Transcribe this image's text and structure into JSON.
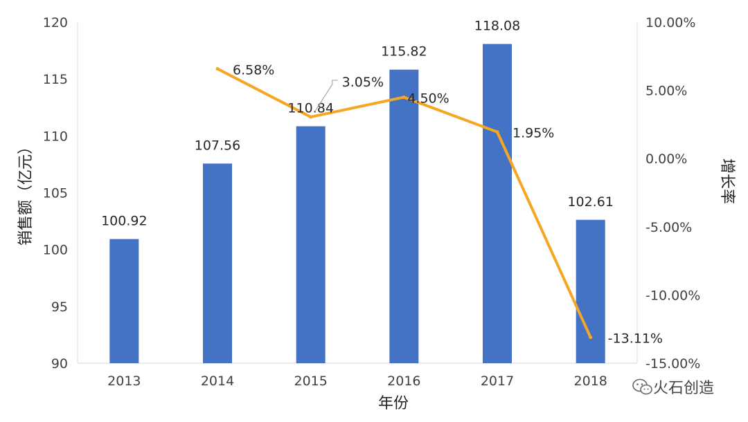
{
  "chart_data": {
    "type": "bar",
    "categories": [
      "2013",
      "2014",
      "2015",
      "2016",
      "2017",
      "2018"
    ],
    "series": [
      {
        "type": "bar",
        "axis": "left",
        "color": "#4472C4",
        "values": [
          100.92,
          107.56,
          110.84,
          115.82,
          118.08,
          102.61
        ],
        "labels": [
          "100.92",
          "107.56",
          "110.84",
          "115.82",
          "118.08",
          "102.61"
        ]
      },
      {
        "type": "line",
        "axis": "right",
        "color": "#F5A623",
        "values": [
          null,
          6.58,
          3.05,
          4.5,
          1.95,
          -13.11
        ],
        "labels": [
          "",
          "6.58%",
          "3.05%",
          "4.50%",
          "1.95%",
          "-13.11%"
        ]
      }
    ],
    "xlabel": "年份",
    "ylabel": "销售额（亿元）",
    "y2label": "增长率",
    "ylim": [
      90,
      120
    ],
    "yticks": [
      "90",
      "95",
      "100",
      "105",
      "110",
      "115",
      "120"
    ],
    "y2lim": [
      -15,
      10
    ],
    "y2ticks": [
      "-15.00%",
      "-10.00%",
      "-5.00%",
      "0.00%",
      "5.00%",
      "10.00%"
    ],
    "grid": false,
    "legend": "none"
  },
  "watermark": {
    "icon": "wechat-icon",
    "text": "火石创造"
  }
}
